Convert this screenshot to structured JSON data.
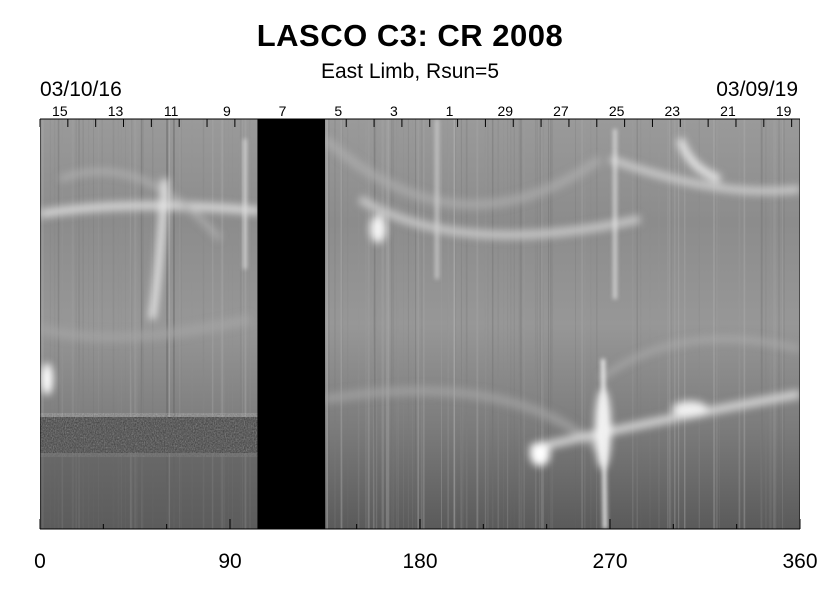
{
  "figure": {
    "title": "LASCO C3: CR 2008",
    "subtitle": "East Limb, Rsun=5",
    "start_date": "03/10/16",
    "end_date": "03/09/19",
    "top_day_labels": [
      "15",
      "13",
      "11",
      "9",
      "7",
      "5",
      "3",
      "1",
      "29",
      "27",
      "25",
      "23",
      "21",
      "19"
    ],
    "bottom_axis": {
      "ticks": [
        "0",
        "90",
        "180",
        "270",
        "360"
      ],
      "range": [
        0,
        360
      ]
    },
    "data_gap": [
      103,
      135
    ],
    "colors": {
      "background": "#ffffff",
      "gap": "#000000",
      "plot_base": "#8a8a8a"
    }
  }
}
